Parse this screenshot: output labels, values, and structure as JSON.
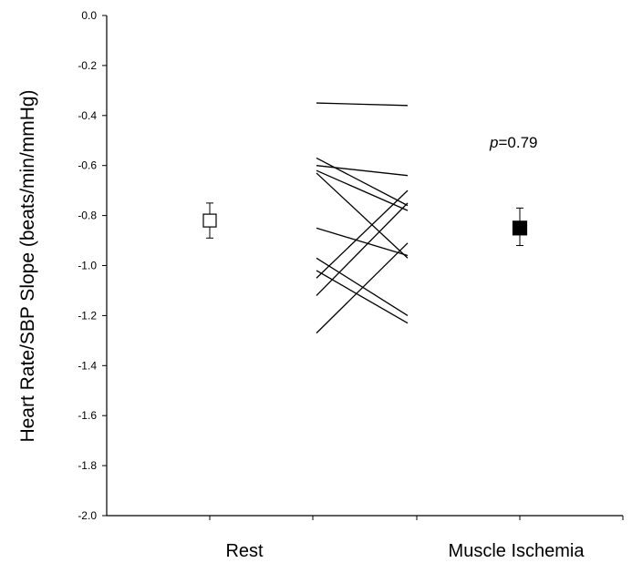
{
  "chart_data": {
    "type": "scatter",
    "ylabel": "Heart Rate/SBP Slope (beats/min/mmHg)",
    "xlabel": "",
    "ylim": [
      -2.0,
      0.0
    ],
    "yticks": [
      "0.0",
      "-0.2",
      "-0.4",
      "-0.6",
      "-0.8",
      "-1.0",
      "-1.2",
      "-1.4",
      "-1.6",
      "-1.8",
      "-2.0"
    ],
    "categories": [
      "Rest",
      "Muscle Ischemia"
    ],
    "summary": [
      {
        "category": "Rest",
        "mean": -0.82,
        "error_high": -0.75,
        "error_low": -0.89,
        "marker": "open-square"
      },
      {
        "category": "Muscle Ischemia",
        "mean": -0.85,
        "error_high": -0.77,
        "error_low": -0.92,
        "marker": "filled-square"
      }
    ],
    "individual_pairs": [
      {
        "rest": -0.35,
        "ischemia": -0.36
      },
      {
        "rest": -0.57,
        "ischemia": -0.76
      },
      {
        "rest": -0.6,
        "ischemia": -0.64
      },
      {
        "rest": -0.62,
        "ischemia": -0.78
      },
      {
        "rest": -0.63,
        "ischemia": -0.97
      },
      {
        "rest": -0.85,
        "ischemia": -0.96
      },
      {
        "rest": -0.97,
        "ischemia": -1.2
      },
      {
        "rest": -1.02,
        "ischemia": -1.23
      },
      {
        "rest": -1.05,
        "ischemia": -0.7
      },
      {
        "rest": -1.12,
        "ischemia": -0.75
      },
      {
        "rest": -1.27,
        "ischemia": -0.91
      }
    ],
    "annotation": {
      "italic": "p",
      "text": "=0.79"
    },
    "grid": false
  }
}
